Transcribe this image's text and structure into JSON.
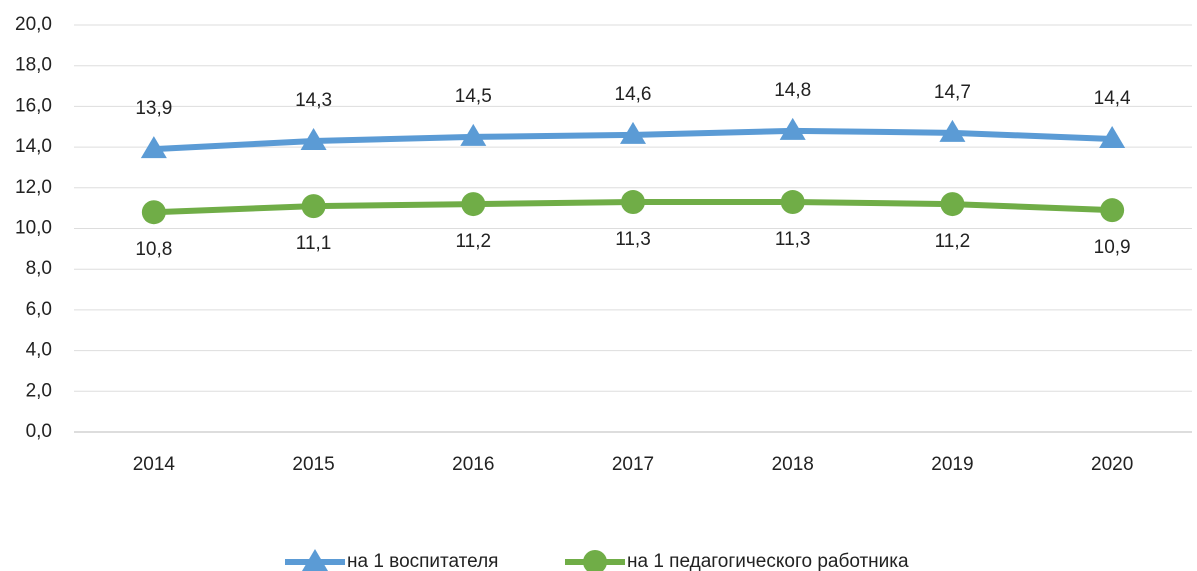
{
  "chart_data": {
    "type": "line",
    "categories": [
      "2014",
      "2015",
      "2016",
      "2017",
      "2018",
      "2019",
      "2020"
    ],
    "series": [
      {
        "name": "на 1 воспитателя",
        "color": "#5b9bd5",
        "marker": "triangle",
        "values": [
          13.9,
          14.3,
          14.5,
          14.6,
          14.8,
          14.7,
          14.4
        ],
        "value_labels": [
          "13,9",
          "14,3",
          "14,5",
          "14,6",
          "14,8",
          "14,7",
          "14,4"
        ]
      },
      {
        "name": "на 1 педагогического работника",
        "color": "#70ad47",
        "marker": "circle",
        "values": [
          10.8,
          11.1,
          11.2,
          11.3,
          11.3,
          11.2,
          10.9
        ],
        "value_labels": [
          "10,8",
          "11,1",
          "11,2",
          "11,3",
          "11,3",
          "11,2",
          "10,9"
        ]
      }
    ],
    "ylim": [
      0,
      20
    ],
    "yticks": [
      {
        "value": 0,
        "label": "0,0"
      },
      {
        "value": 2,
        "label": "2,0"
      },
      {
        "value": 4,
        "label": "4,0"
      },
      {
        "value": 6,
        "label": "6,0"
      },
      {
        "value": 8,
        "label": "8,0"
      },
      {
        "value": 10,
        "label": "10,0"
      },
      {
        "value": 12,
        "label": "12,0"
      },
      {
        "value": 14,
        "label": "14,0"
      },
      {
        "value": 16,
        "label": "16,0"
      },
      {
        "value": 18,
        "label": "18,0"
      },
      {
        "value": 20,
        "label": "20,0"
      }
    ],
    "grid": true,
    "legend": "bottom"
  }
}
